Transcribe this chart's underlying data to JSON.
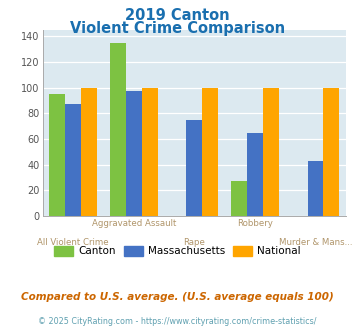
{
  "title_line1": "2019 Canton",
  "title_line2": "Violent Crime Comparison",
  "categories": [
    "All Violent Crime",
    "Aggravated Assault",
    "Rape",
    "Robbery",
    "Murder & Mans..."
  ],
  "series": {
    "Canton": [
      95,
      135,
      0,
      27,
      0
    ],
    "Massachusetts": [
      87,
      97,
      75,
      65,
      43
    ],
    "National": [
      100,
      100,
      100,
      100,
      100
    ]
  },
  "colors": {
    "Canton": "#7dc242",
    "Massachusetts": "#4472c4",
    "National": "#ffa500"
  },
  "ylim": [
    0,
    145
  ],
  "yticks": [
    0,
    20,
    40,
    60,
    80,
    100,
    120,
    140
  ],
  "title_color": "#1a6faf",
  "axis_label_color": "#b0956a",
  "background_color": "#dce9f0",
  "outer_background": "#ffffff",
  "footnote1": "Compared to U.S. average. (U.S. average equals 100)",
  "footnote2": "© 2025 CityRating.com - https://www.cityrating.com/crime-statistics/",
  "footnote1_color": "#cc6600",
  "footnote2_color": "#5fa0b0"
}
